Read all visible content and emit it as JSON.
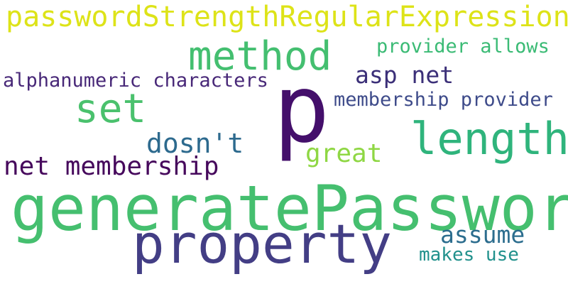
{
  "words": [
    {
      "id": "w1",
      "text": "passwordStrengthRegularExpression",
      "color": "#dde318"
    },
    {
      "id": "w2",
      "text": "method",
      "color": "#44bf70"
    },
    {
      "id": "w3",
      "text": "provider allows",
      "color": "#3bbb75"
    },
    {
      "id": "w4",
      "text": "asp net",
      "color": "#3b2f78"
    },
    {
      "id": "w5",
      "text": "alphanumeric characters",
      "color": "#482878"
    },
    {
      "id": "w6",
      "text": "p",
      "color": "#440f6b"
    },
    {
      "id": "w7",
      "text": "set",
      "color": "#4ac16d"
    },
    {
      "id": "w8",
      "text": "membership provider",
      "color": "#3e4b8a"
    },
    {
      "id": "w9",
      "text": "length",
      "color": "#2fb47c"
    },
    {
      "id": "w10",
      "text": "dosn't",
      "color": "#2d6a8e"
    },
    {
      "id": "w11",
      "text": "great",
      "color": "#8fd744"
    },
    {
      "id": "w12",
      "text": "net membership",
      "color": "#46085c"
    },
    {
      "id": "w13",
      "text": "generatePassword",
      "color": "#45bf6f"
    },
    {
      "id": "w14",
      "text": "property",
      "color": "#433e85"
    },
    {
      "id": "w15",
      "text": "assume",
      "color": "#2c6d8e"
    },
    {
      "id": "w16",
      "text": "makes use",
      "color": "#21918c"
    }
  ]
}
